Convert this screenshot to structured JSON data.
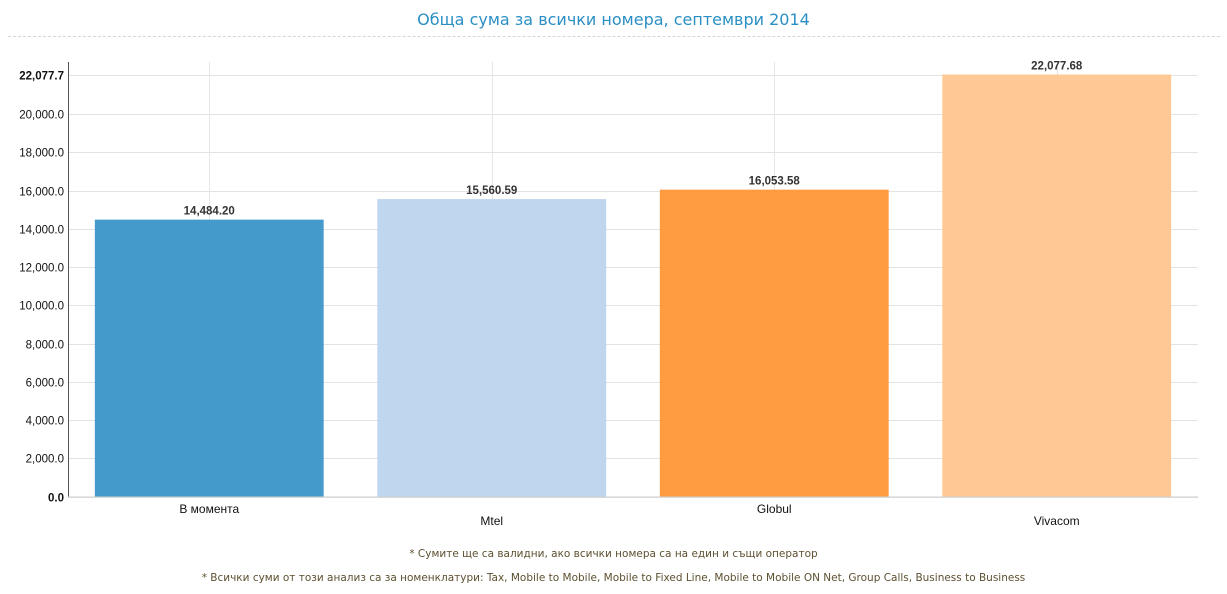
{
  "title": "Обща сума за всички номера, септември 2014",
  "chart_data": {
    "type": "bar",
    "categories": [
      "В момента",
      "Mtel",
      "Globul",
      "Vivacom"
    ],
    "values": [
      14484.2,
      15560.59,
      16053.58,
      22077.68
    ],
    "value_labels": [
      "14,484.20",
      "15,560.59",
      "16,053.58",
      "22,077.68"
    ],
    "colors": [
      "#3a96c8",
      "#bcd4ed",
      "#ff9637",
      "#ffc68f"
    ],
    "yticks": [
      0,
      2000,
      4000,
      6000,
      8000,
      10000,
      12000,
      14000,
      16000,
      18000,
      20000,
      22077.7
    ],
    "ytick_labels": [
      "0.0",
      "2,000.0",
      "4,000.0",
      "6,000.0",
      "8,000.0",
      "10,000.0",
      "12,000.0",
      "14,000.0",
      "16,000.0",
      "18,000.0",
      "20,000.0",
      "22,077.7"
    ],
    "ylim": [
      0,
      22077.7
    ],
    "grid": true
  },
  "notes": [
    "* Сумите ще са валидни, ако всички номера са на един и същи оператор",
    "* Всички суми от този анализ са за номенклатури: Tax, Mobile to Mobile, Mobile to Fixed Line, Mobile to Mobile ON Net, Group Calls, Business to Business"
  ]
}
